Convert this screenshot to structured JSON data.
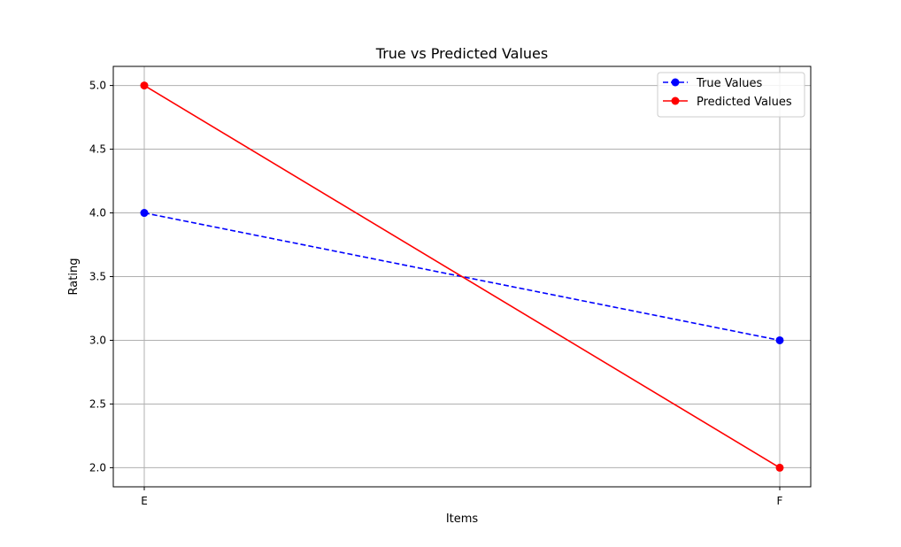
{
  "chart_data": {
    "type": "line",
    "title": "True vs Predicted Values",
    "xlabel": "Items",
    "ylabel": "Rating",
    "categories": [
      "E",
      "F"
    ],
    "ylim": [
      1.85,
      5.15
    ],
    "yticks": [
      2.0,
      2.5,
      3.0,
      3.5,
      4.0,
      4.5,
      5.0
    ],
    "ytick_labels": [
      "2.0",
      "2.5",
      "3.0",
      "3.5",
      "4.0",
      "4.5",
      "5.0"
    ],
    "grid": true,
    "legend_position": "top-right",
    "series": [
      {
        "name": "True Values",
        "values": [
          4.0,
          3.0
        ],
        "color": "#0000ff",
        "linestyle": "dashed",
        "marker": "circle"
      },
      {
        "name": "Predicted Values",
        "values": [
          5.0,
          2.0
        ],
        "color": "#ff0000",
        "linestyle": "solid",
        "marker": "circle"
      }
    ]
  }
}
